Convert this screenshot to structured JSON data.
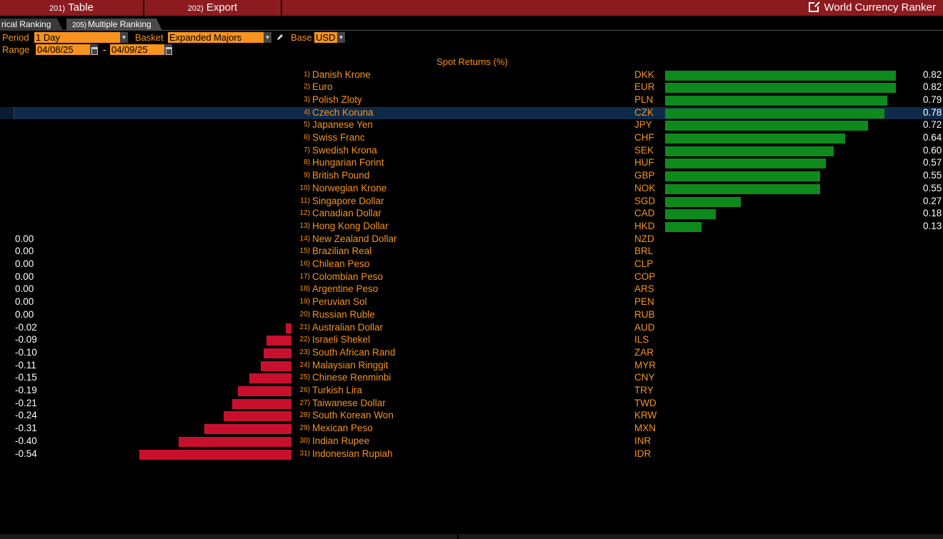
{
  "topbar": {
    "buttons": [
      {
        "num": "201)",
        "label": "Table"
      },
      {
        "num": "202)",
        "label": "Export"
      }
    ],
    "title": "World Currency Ranker"
  },
  "tabs": [
    {
      "label": "rical Ranking"
    },
    {
      "num": "205)",
      "label": "Multiple Ranking"
    }
  ],
  "controls": {
    "period_label": "Period",
    "period_value": "1 Day",
    "basket_label": "Basket",
    "basket_value": "Expanded Majors",
    "base_label": "Base",
    "base_value": "USD",
    "range_label": "Range",
    "range_start": "04/08/25",
    "range_sep": "-",
    "range_end": "04/09/25"
  },
  "chart_data": {
    "type": "bar",
    "title": "Spot Returns (%)",
    "selected_index": 3,
    "rows": [
      {
        "rank": "1)",
        "name": "Danish Krone",
        "code": "DKK",
        "value": 0.82,
        "label": "0.82"
      },
      {
        "rank": "2)",
        "name": "Euro",
        "code": "EUR",
        "value": 0.82,
        "label": "0.82"
      },
      {
        "rank": "3)",
        "name": "Polish Zloty",
        "code": "PLN",
        "value": 0.79,
        "label": "0.79"
      },
      {
        "rank": "4)",
        "name": "Czech Koruna",
        "code": "CZK",
        "value": 0.78,
        "label": "0.78"
      },
      {
        "rank": "5)",
        "name": "Japanese Yen",
        "code": "JPY",
        "value": 0.72,
        "label": "0.72"
      },
      {
        "rank": "6)",
        "name": "Swiss Franc",
        "code": "CHF",
        "value": 0.64,
        "label": "0.64"
      },
      {
        "rank": "7)",
        "name": "Swedish Krona",
        "code": "SEK",
        "value": 0.6,
        "label": "0.60"
      },
      {
        "rank": "8)",
        "name": "Hungarian Forint",
        "code": "HUF",
        "value": 0.57,
        "label": "0.57"
      },
      {
        "rank": "9)",
        "name": "British Pound",
        "code": "GBP",
        "value": 0.55,
        "label": "0.55"
      },
      {
        "rank": "10)",
        "name": "Norwegian Krone",
        "code": "NOK",
        "value": 0.55,
        "label": "0.55"
      },
      {
        "rank": "11)",
        "name": "Singapore Dollar",
        "code": "SGD",
        "value": 0.27,
        "label": "0.27"
      },
      {
        "rank": "12)",
        "name": "Canadian Dollar",
        "code": "CAD",
        "value": 0.18,
        "label": "0.18"
      },
      {
        "rank": "13)",
        "name": "Hong Kong Dollar",
        "code": "HKD",
        "value": 0.13,
        "label": "0.13"
      },
      {
        "rank": "14)",
        "name": "New Zealand Dollar",
        "code": "NZD",
        "value": 0.0,
        "label": "0.00"
      },
      {
        "rank": "15)",
        "name": "Brazilian Real",
        "code": "BRL",
        "value": 0.0,
        "label": "0.00"
      },
      {
        "rank": "16)",
        "name": "Chilean Peso",
        "code": "CLP",
        "value": 0.0,
        "label": "0.00"
      },
      {
        "rank": "17)",
        "name": "Colombian Peso",
        "code": "COP",
        "value": 0.0,
        "label": "0.00"
      },
      {
        "rank": "18)",
        "name": "Argentine Peso",
        "code": "ARS",
        "value": 0.0,
        "label": "0.00"
      },
      {
        "rank": "19)",
        "name": "Peruvian Sol",
        "code": "PEN",
        "value": 0.0,
        "label": "0.00"
      },
      {
        "rank": "20)",
        "name": "Russian Ruble",
        "code": "RUB",
        "value": 0.0,
        "label": "0.00"
      },
      {
        "rank": "21)",
        "name": "Australian Dollar",
        "code": "AUD",
        "value": -0.02,
        "label": "-0.02"
      },
      {
        "rank": "22)",
        "name": "Israeli Shekel",
        "code": "ILS",
        "value": -0.09,
        "label": "-0.09"
      },
      {
        "rank": "23)",
        "name": "South African Rand",
        "code": "ZAR",
        "value": -0.1,
        "label": "-0.10"
      },
      {
        "rank": "24)",
        "name": "Malaysian Ringgit",
        "code": "MYR",
        "value": -0.11,
        "label": "-0.11"
      },
      {
        "rank": "25)",
        "name": "Chinese Renminbi",
        "code": "CNY",
        "value": -0.15,
        "label": "-0.15"
      },
      {
        "rank": "26)",
        "name": "Turkish Lira",
        "code": "TRY",
        "value": -0.19,
        "label": "-0.19"
      },
      {
        "rank": "27)",
        "name": "Taiwanese Dollar",
        "code": "TWD",
        "value": -0.21,
        "label": "-0.21"
      },
      {
        "rank": "28)",
        "name": "South Korean Won",
        "code": "KRW",
        "value": -0.24,
        "label": "-0.24"
      },
      {
        "rank": "29)",
        "name": "Mexican Peso",
        "code": "MXN",
        "value": -0.31,
        "label": "-0.31"
      },
      {
        "rank": "30)",
        "name": "Indian Rupee",
        "code": "INR",
        "value": -0.4,
        "label": "-0.40"
      },
      {
        "rank": "31)",
        "name": "Indonesian Rupiah",
        "code": "IDR",
        "value": -0.54,
        "label": "-0.54"
      }
    ],
    "colors": {
      "positive": "#0e8a1d",
      "negative": "#c8102e"
    }
  },
  "colors": {
    "accent": "#f7931e",
    "menubar": "#8c1b1f",
    "selected_row": "#0f2a49"
  }
}
